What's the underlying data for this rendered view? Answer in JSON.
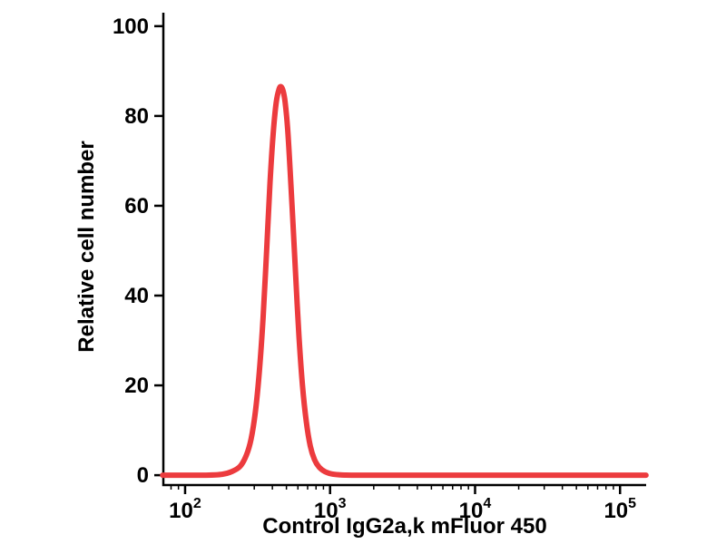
{
  "chart_data": {
    "type": "line",
    "subtype": "flow-cytometry-histogram",
    "title": "",
    "xlabel": "Control IgG2a,k mFluor 450",
    "ylabel": "Relative cell number",
    "grid": false,
    "legend": false,
    "axis_color": "#000000",
    "x_axis": {
      "scale": "log",
      "log_range": [
        1.85,
        5.18
      ],
      "major_ticks": [
        {
          "log": 2,
          "base": "10",
          "exp": "2"
        },
        {
          "log": 3,
          "base": "10",
          "exp": "3"
        },
        {
          "log": 4,
          "base": "10",
          "exp": "4"
        },
        {
          "log": 5,
          "base": "10",
          "exp": "5"
        }
      ]
    },
    "y_axis": {
      "range": [
        -2.2,
        103
      ],
      "ticks": [
        0,
        20,
        40,
        60,
        80,
        100
      ]
    },
    "series": [
      {
        "name": "Control IgG2a,k mFluor 450",
        "color": "#ec3b3e",
        "stroke_width": 6,
        "points": [
          [
            70,
            0
          ],
          [
            100,
            0
          ],
          [
            140,
            0
          ],
          [
            180,
            0.2
          ],
          [
            210,
            0.8
          ],
          [
            240,
            2
          ],
          [
            265,
            4.5
          ],
          [
            285,
            8
          ],
          [
            305,
            14
          ],
          [
            325,
            23
          ],
          [
            345,
            35
          ],
          [
            365,
            50
          ],
          [
            385,
            65
          ],
          [
            405,
            76
          ],
          [
            425,
            83
          ],
          [
            445,
            86
          ],
          [
            460,
            86.5
          ],
          [
            475,
            85.5
          ],
          [
            490,
            83
          ],
          [
            510,
            77
          ],
          [
            530,
            68
          ],
          [
            555,
            56
          ],
          [
            580,
            44
          ],
          [
            610,
            31
          ],
          [
            645,
            20
          ],
          [
            685,
            12
          ],
          [
            730,
            6.5
          ],
          [
            780,
            3.5
          ],
          [
            840,
            1.8
          ],
          [
            920,
            0.8
          ],
          [
            1020,
            0.3
          ],
          [
            1150,
            0.1
          ],
          [
            1400,
            0
          ],
          [
            3000,
            0
          ],
          [
            10000,
            0
          ],
          [
            50000,
            0
          ],
          [
            151000,
            0
          ]
        ]
      }
    ]
  }
}
